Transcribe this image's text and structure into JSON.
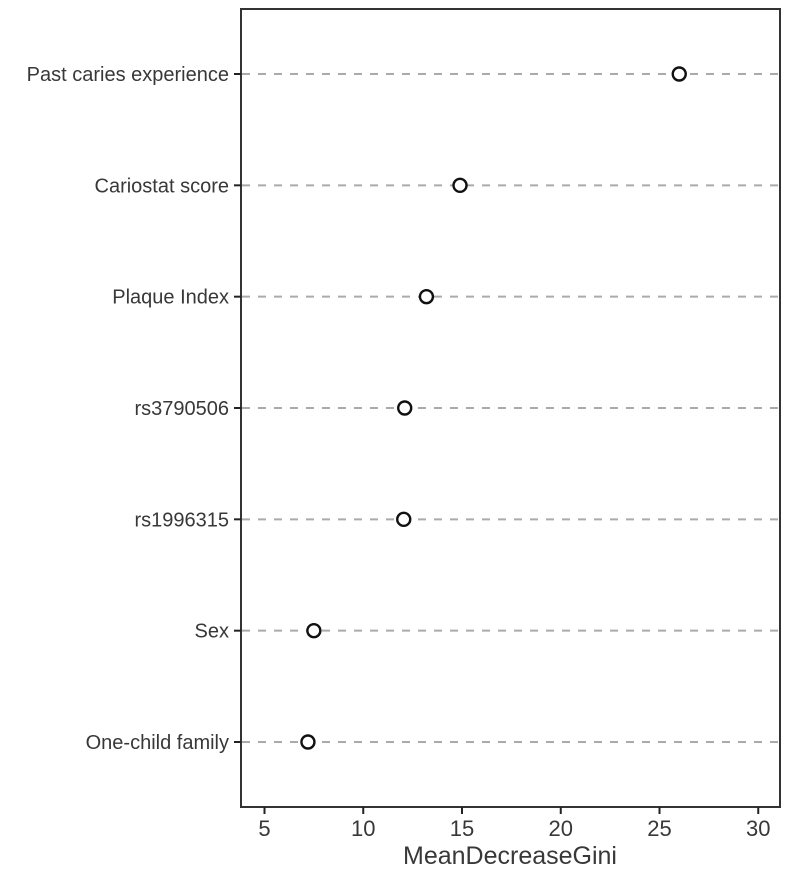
{
  "figure": {
    "description": "Variable importance dot plot",
    "background": "#ffffff"
  },
  "chart_data": {
    "type": "scatter",
    "subtype": "dot-plot-horizontal",
    "title": "",
    "xlabel": "MeanDecreaseGini",
    "ylabel": "",
    "categories": [
      "Past caries experience",
      "Cariostat score",
      "Plaque Index",
      "rs3790506",
      "rs1996315",
      "Sex",
      "One-child family"
    ],
    "values": [
      26.0,
      14.9,
      13.2,
      12.1,
      12.05,
      7.5,
      7.2
    ],
    "xticks": [
      5,
      10,
      15,
      20,
      25,
      30
    ],
    "xlim": [
      3.8,
      31.2
    ],
    "grid": "horizontal dashed line per category, spanning full panel width",
    "legend": "none",
    "colors": {
      "point_fill": "#ffffff",
      "point_stroke": "#111111",
      "grid_line": "#aaaaaa",
      "panel_border": "#333333",
      "tick_mark": "#222222",
      "text": "#383838"
    }
  }
}
